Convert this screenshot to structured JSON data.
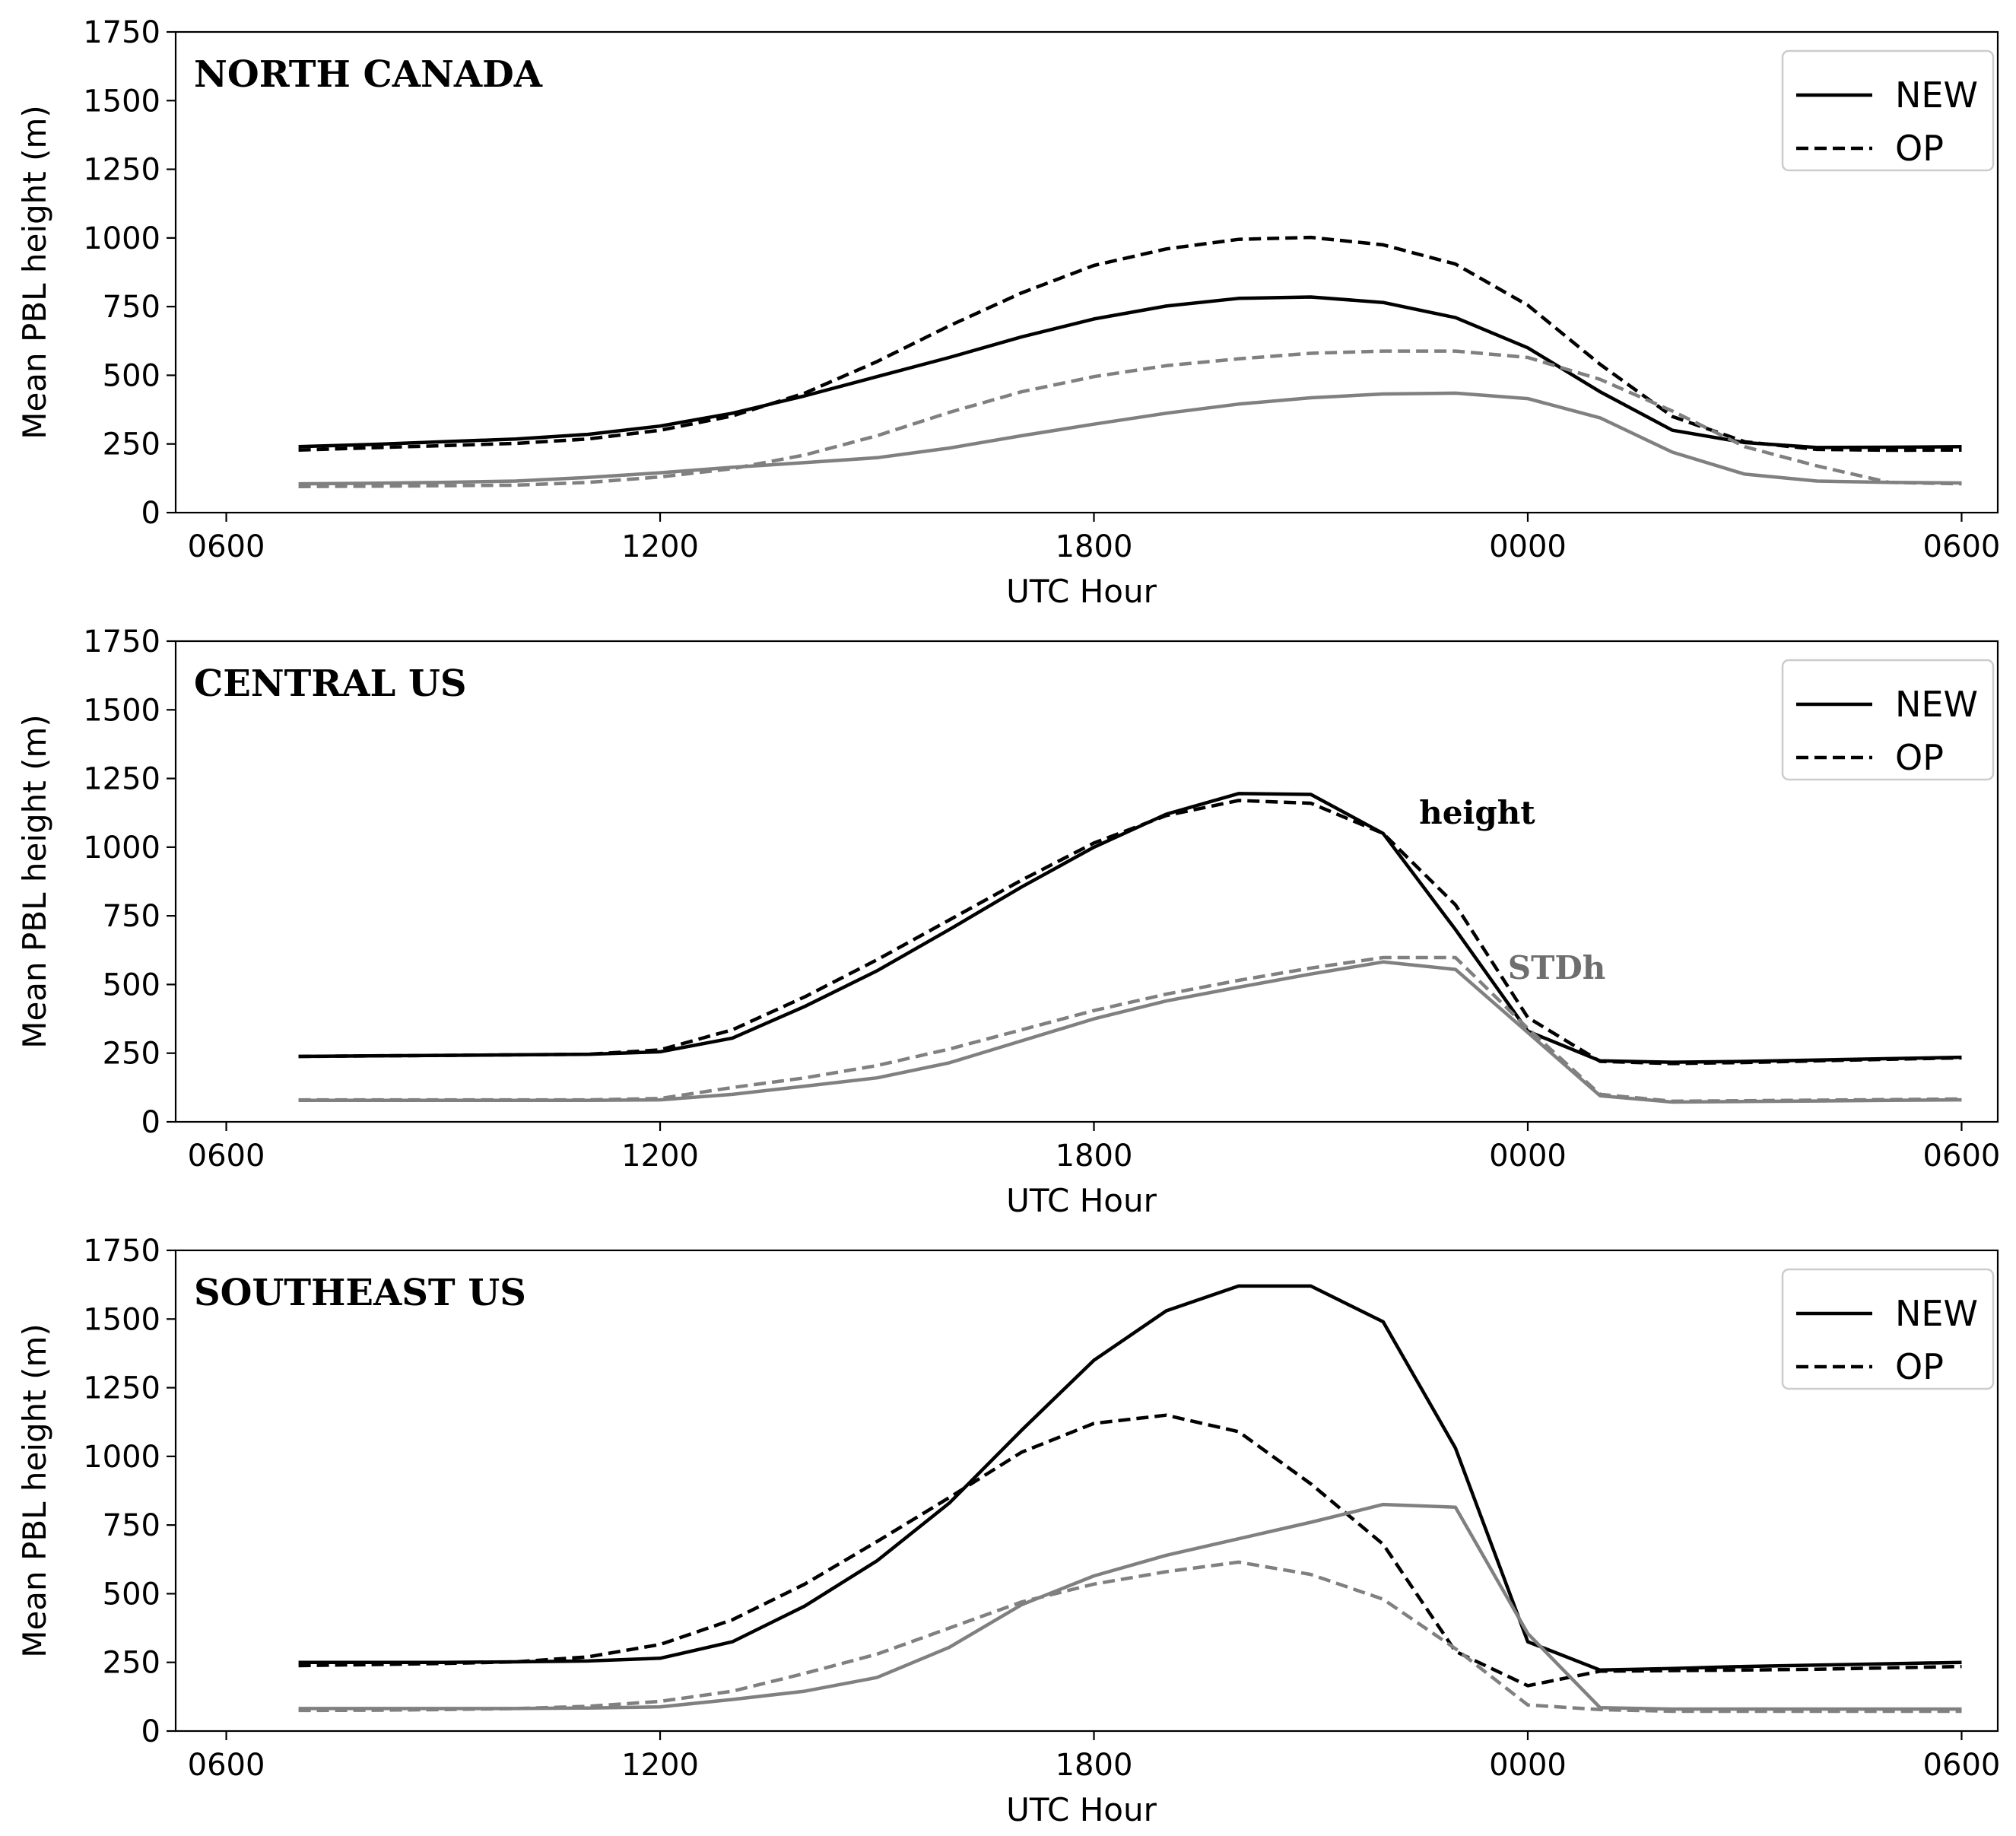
{
  "chart_data": [
    {
      "type": "line",
      "title": "NORTH CANADA",
      "xlabel": "UTC Hour",
      "ylabel": "Mean PBL height (m)",
      "xlim": [
        -0.7,
        24.5
      ],
      "ylim": [
        0,
        1750
      ],
      "xticks": [
        0,
        6,
        12,
        18,
        24
      ],
      "xtick_labels": [
        "0600",
        "1200",
        "1800",
        "0000",
        "0600"
      ],
      "yticks": [
        0,
        250,
        500,
        750,
        1000,
        1250,
        1500,
        1750
      ],
      "ytick_labels": [
        "0",
        "250",
        "500",
        "750",
        "1000",
        "1250",
        "1500",
        "1750"
      ],
      "legend": {
        "position": "top-right",
        "entries": [
          {
            "label": "NEW",
            "style": "solid"
          },
          {
            "label": "OP",
            "style": "dashed"
          }
        ]
      },
      "annotations": [],
      "x": [
        1,
        2,
        3,
        4,
        5,
        6,
        7,
        8,
        9,
        10,
        11,
        12,
        13,
        14,
        15,
        16,
        17,
        18,
        19,
        20,
        21,
        22,
        23,
        24
      ],
      "series": [
        {
          "name": "NEW height",
          "color": "#000000",
          "dash": "solid",
          "values": [
            240,
            248,
            258,
            268,
            285,
            315,
            362,
            425,
            495,
            565,
            640,
            705,
            752,
            780,
            785,
            765,
            710,
            600,
            440,
            300,
            255,
            237,
            238,
            240
          ]
        },
        {
          "name": "OP height",
          "color": "#000000",
          "dash": "dashed",
          "values": [
            228,
            236,
            244,
            252,
            268,
            300,
            352,
            435,
            550,
            680,
            800,
            900,
            960,
            995,
            1002,
            975,
            905,
            755,
            540,
            350,
            258,
            230,
            227,
            228
          ]
        },
        {
          "name": "NEW STDh",
          "color": "#808080",
          "dash": "solid",
          "values": [
            105,
            107,
            110,
            115,
            128,
            145,
            165,
            182,
            200,
            235,
            280,
            322,
            362,
            395,
            418,
            432,
            435,
            415,
            345,
            220,
            140,
            115,
            110,
            108
          ]
        },
        {
          "name": "OP STDh",
          "color": "#808080",
          "dash": "dashed",
          "values": [
            95,
            96,
            98,
            100,
            110,
            130,
            160,
            210,
            280,
            365,
            440,
            495,
            535,
            560,
            580,
            588,
            588,
            565,
            485,
            370,
            240,
            170,
            110,
            105
          ]
        }
      ]
    },
    {
      "type": "line",
      "title": "CENTRAL US",
      "xlabel": "UTC Hour",
      "ylabel": "Mean PBL height (m)",
      "xlim": [
        -0.7,
        24.5
      ],
      "ylim": [
        0,
        1750
      ],
      "xticks": [
        0,
        6,
        12,
        18,
        24
      ],
      "xtick_labels": [
        "0600",
        "1200",
        "1800",
        "0000",
        "0600"
      ],
      "yticks": [
        0,
        250,
        500,
        750,
        1000,
        1250,
        1500,
        1750
      ],
      "ytick_labels": [
        "0",
        "250",
        "500",
        "750",
        "1000",
        "1250",
        "1500",
        "1750"
      ],
      "legend": {
        "position": "top-right",
        "entries": [
          {
            "label": "NEW",
            "style": "solid"
          },
          {
            "label": "OP",
            "style": "dashed"
          }
        ]
      },
      "annotations": [
        {
          "text": "height",
          "x": 17.3,
          "y": 1085,
          "color": "#000000"
        },
        {
          "text": "STDh",
          "x": 18.4,
          "y": 520,
          "color": "#6e6e6e"
        }
      ],
      "x": [
        1,
        2,
        3,
        4,
        5,
        6,
        7,
        8,
        9,
        10,
        11,
        12,
        13,
        14,
        15,
        16,
        17,
        18,
        19,
        20,
        21,
        22,
        23,
        24
      ],
      "series": [
        {
          "name": "NEW height",
          "color": "#000000",
          "dash": "solid",
          "values": [
            238,
            240,
            242,
            244,
            246,
            255,
            305,
            420,
            550,
            700,
            855,
            1000,
            1120,
            1195,
            1192,
            1050,
            700,
            330,
            222,
            217,
            220,
            225,
            230,
            235
          ]
        },
        {
          "name": "OP height",
          "color": "#000000",
          "dash": "dashed",
          "values": [
            238,
            240,
            242,
            244,
            246,
            262,
            335,
            455,
            590,
            735,
            880,
            1015,
            1115,
            1170,
            1160,
            1050,
            790,
            380,
            220,
            212,
            216,
            222,
            228,
            233
          ]
        },
        {
          "name": "NEW STDh",
          "color": "#808080",
          "dash": "solid",
          "values": [
            78,
            78,
            78,
            78,
            78,
            80,
            100,
            130,
            160,
            215,
            295,
            375,
            440,
            490,
            538,
            582,
            555,
            325,
            95,
            72,
            74,
            76,
            78,
            80
          ]
        },
        {
          "name": "OP STDh",
          "color": "#808080",
          "dash": "dashed",
          "values": [
            80,
            80,
            80,
            80,
            80,
            85,
            125,
            160,
            205,
            265,
            335,
            405,
            465,
            515,
            560,
            598,
            598,
            340,
            100,
            75,
            77,
            79,
            81,
            83
          ]
        }
      ]
    },
    {
      "type": "line",
      "title": "SOUTHEAST US",
      "xlabel": "UTC Hour",
      "ylabel": "Mean PBL height (m)",
      "xlim": [
        -0.7,
        24.5
      ],
      "ylim": [
        0,
        1750
      ],
      "xticks": [
        0,
        6,
        12,
        18,
        24
      ],
      "xtick_labels": [
        "0600",
        "1200",
        "1800",
        "0000",
        "0600"
      ],
      "yticks": [
        0,
        250,
        500,
        750,
        1000,
        1250,
        1500,
        1750
      ],
      "ytick_labels": [
        "0",
        "250",
        "500",
        "750",
        "1000",
        "1250",
        "1500",
        "1750"
      ],
      "legend": {
        "position": "top-right",
        "entries": [
          {
            "label": "NEW",
            "style": "solid"
          },
          {
            "label": "OP",
            "style": "dashed"
          }
        ]
      },
      "annotations": [],
      "x": [
        1,
        2,
        3,
        4,
        5,
        6,
        7,
        8,
        9,
        10,
        11,
        12,
        13,
        14,
        15,
        16,
        17,
        18,
        19,
        20,
        21,
        22,
        23,
        24
      ],
      "series": [
        {
          "name": "NEW height",
          "color": "#000000",
          "dash": "solid",
          "values": [
            250,
            250,
            250,
            252,
            255,
            265,
            325,
            455,
            620,
            830,
            1095,
            1350,
            1530,
            1620,
            1620,
            1490,
            1030,
            325,
            222,
            228,
            235,
            240,
            245,
            250
          ]
        },
        {
          "name": "OP height",
          "color": "#000000",
          "dash": "dashed",
          "values": [
            238,
            242,
            246,
            252,
            270,
            315,
            405,
            535,
            690,
            850,
            1015,
            1120,
            1150,
            1090,
            900,
            680,
            290,
            165,
            218,
            220,
            222,
            225,
            230,
            235
          ]
        },
        {
          "name": "NEW STDh",
          "color": "#808080",
          "dash": "solid",
          "values": [
            82,
            82,
            82,
            82,
            84,
            88,
            115,
            145,
            195,
            305,
            460,
            565,
            640,
            700,
            760,
            825,
            815,
            355,
            85,
            80,
            80,
            80,
            80,
            80
          ]
        },
        {
          "name": "OP STDh",
          "color": "#808080",
          "dash": "dashed",
          "values": [
            75,
            76,
            78,
            82,
            90,
            108,
            145,
            210,
            280,
            375,
            470,
            535,
            580,
            615,
            570,
            480,
            300,
            95,
            78,
            72,
            72,
            72,
            72,
            72
          ]
        }
      ]
    }
  ]
}
